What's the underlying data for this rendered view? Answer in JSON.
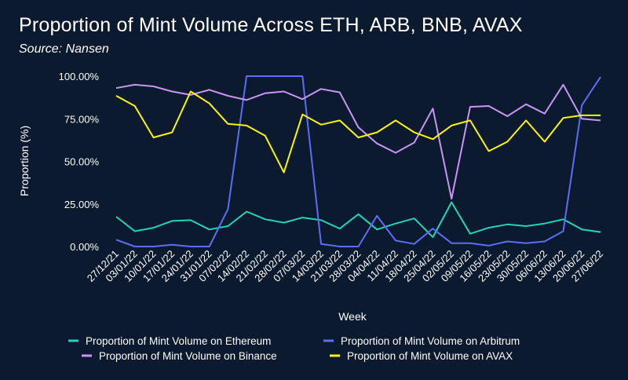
{
  "chart_data": {
    "type": "line",
    "title": "Proportion of Mint Volume Across ETH, ARB, BNB, AVAX",
    "subtitle": "Source: Nansen",
    "xlabel": "Week",
    "ylabel": "Proportion (%)",
    "ylim": [
      0,
      100
    ],
    "yticks": [
      {
        "value": 0,
        "label": "0.00%"
      },
      {
        "value": 25,
        "label": "25.00%"
      },
      {
        "value": 50,
        "label": "50.00%"
      },
      {
        "value": 75,
        "label": "75.00%"
      },
      {
        "value": 100,
        "label": "100.00%"
      }
    ],
    "x": [
      "27/12/21",
      "03/01/22",
      "10/01/22",
      "17/01/22",
      "24/01/22",
      "31/01/22",
      "07/02/22",
      "14/02/22",
      "21/02/22",
      "28/02/22",
      "07/03/22",
      "14/03/22",
      "21/03/22",
      "28/03/22",
      "04/04/22",
      "11/04/22",
      "18/04/22",
      "25/04/22",
      "02/05/22",
      "09/05/22",
      "16/05/22",
      "23/05/22",
      "30/05/22",
      "06/06/22",
      "13/06/22",
      "20/06/22",
      "27/06/22"
    ],
    "series": [
      {
        "name": "Proportion of Mint Volume on Ethereum",
        "color": "#1ed6b4",
        "values": [
          17.5,
          9,
          11,
          15,
          15.5,
          10,
          12,
          20.5,
          16,
          14,
          17,
          15.5,
          10.5,
          19,
          10,
          13.5,
          16.5,
          5.5,
          26,
          7.5,
          11,
          13,
          12,
          13.5,
          16,
          10,
          8.5
        ]
      },
      {
        "name": "Proportion of Mint Volume on Arbitrum",
        "color": "#5c6dfa",
        "values": [
          4,
          0,
          0,
          1,
          0,
          0,
          22,
          100,
          100,
          100,
          100,
          1.5,
          0,
          0,
          18,
          3.5,
          1.5,
          10.5,
          2,
          2,
          0.5,
          3,
          2,
          3,
          9,
          83,
          99.5
        ]
      },
      {
        "name": "Proportion of Mint Volume on Binance",
        "color": "#c996f5",
        "values": [
          93,
          95,
          94,
          91,
          89,
          92,
          88.5,
          86,
          90,
          91,
          86.5,
          92.5,
          90.5,
          70,
          60.5,
          55,
          61,
          81,
          28,
          82,
          82.5,
          76.5,
          83.5,
          78,
          95,
          75,
          74
        ]
      },
      {
        "name": "Proportion of Mint Volume on AVAX",
        "color": "#fbf505",
        "values": [
          88.5,
          82.5,
          64,
          67,
          91,
          84,
          72,
          71,
          65,
          43.5,
          77.5,
          71.5,
          74,
          64,
          67,
          74,
          67,
          63,
          71,
          74,
          56,
          61.5,
          74,
          61.5,
          75.5,
          77,
          77
        ]
      }
    ]
  }
}
